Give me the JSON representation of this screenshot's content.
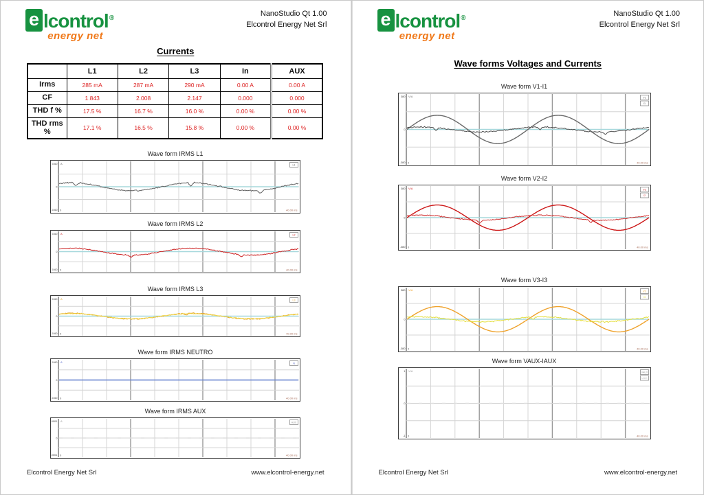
{
  "logo": {
    "e": "e",
    "word": "lcontrol",
    "reg": "®",
    "sub": "energy net",
    "green": "#179240",
    "orange": "#f07818"
  },
  "header": {
    "line1": "NanoStudio Qt 1.00",
    "line2": "Elcontrol Energy Net Srl"
  },
  "footer": {
    "left": "Elcontrol Energy Net Srl",
    "right": "www.elcontrol-energy.net"
  },
  "colors": {
    "baseline_cyan": "#a6d8dc",
    "grid_light": "#d4d4d4",
    "grid_dark": "#9a9a9a",
    "value_red": "#dd2222"
  },
  "pages": [
    {
      "title": "Currents",
      "table": {
        "columns": [
          "",
          "L1",
          "L2",
          "L3",
          "In",
          "AUX"
        ],
        "rows": [
          {
            "label": "Irms",
            "values": [
              "285 mA",
              "287 mA",
              "290 mA",
              "0.00 A",
              "0.00 A"
            ]
          },
          {
            "label": "CF",
            "values": [
              "1.843",
              "2.008",
              "2.147",
              "0.000",
              "0.000"
            ]
          },
          {
            "label": "THD f %",
            "values": [
              "17.5 %",
              "16.7 %",
              "16.0 %",
              "0.00 %",
              "0.00 %"
            ]
          },
          {
            "label": "THD rms %",
            "values": [
              "17.1 %",
              "16.5 %",
              "15.8 %",
              "0.00 %",
              "0.00 %"
            ]
          }
        ]
      },
      "charts": [
        {
          "title": "Wave form IRMS L1",
          "unit": "A",
          "y_labels": [
            "0.60",
            "0",
            "-0.60"
          ],
          "x_start": "0",
          "x_end": "40.00 ms",
          "baseline": "#a6d8dc",
          "legend": [
            {
              "label": "L1",
              "color": "#5f5f5f"
            }
          ],
          "series": [
            {
              "name": "IRMS L1",
              "color": "#5f5f5f",
              "shape": "noisy",
              "amp": 0.16,
              "cycles": 2,
              "phase": 0.9,
              "noise": 0.03,
              "dips": [
                0.07,
                0.55,
                0.84
              ],
              "dip_depth": 0.12
            }
          ]
        },
        {
          "title": "Wave form IRMS L2",
          "unit": "A",
          "y_labels": [
            "0.60",
            "0",
            "-0.60"
          ],
          "x_start": "0",
          "x_end": "40.00 ms",
          "baseline": "#a6d8dc",
          "legend": [
            {
              "label": "L2",
              "color": "#cc2020"
            }
          ],
          "series": [
            {
              "name": "IRMS L2",
              "color": "#cc2020",
              "shape": "noisy",
              "amp": 0.17,
              "cycles": 2,
              "phase": 0.9,
              "noise": 0.03,
              "dips": [
                0.3,
                0.76
              ],
              "dip_depth": 0.12
            }
          ]
        },
        {
          "title": "Wave form IRMS L3",
          "unit": "A",
          "y_labels": [
            "0.60",
            "0",
            "-0.60"
          ],
          "x_start": "0",
          "x_end": "40.00 ms",
          "baseline": "#a6d8dc",
          "legend": [
            {
              "label": "L3",
              "color": "#e5a027"
            }
          ],
          "series": [
            {
              "name": "IRMS L3",
              "color": "#e5a027",
              "shape": "noisy",
              "amp": 0.15,
              "cycles": 2,
              "phase": 0.9,
              "noise": 0.03,
              "dips": [
                0.53
              ],
              "dip_depth": 0.1
            },
            {
              "name": "IRMS L3 trace",
              "color": "#f0d84a",
              "shape": "noisy",
              "amp": 0.13,
              "cycles": 2,
              "phase": 0.9,
              "noise": 0.025,
              "dips": [],
              "dip_depth": 0
            }
          ]
        },
        {
          "title": "Wave form IRMS NEUTRO",
          "unit": "A",
          "y_labels": [
            "0.60",
            "0",
            "-0.60"
          ],
          "x_start": "0",
          "x_end": "40.00 ms",
          "baseline": "#a6d8dc",
          "legend": [
            {
              "label": "N",
              "color": "#5566cc"
            }
          ],
          "series": [
            {
              "name": "IRMS NEUTRO",
              "color": "#5566cc",
              "shape": "flat",
              "amp": 0,
              "cycles": 0,
              "phase": 0,
              "noise": 0,
              "dips": [],
              "dip_depth": 0
            }
          ]
        },
        {
          "title": "Wave form IRMS AUX",
          "unit": "A",
          "y_labels": [
            "0.0001",
            "0",
            "-0.0001"
          ],
          "x_start": "0",
          "x_end": "40.00 ms",
          "baseline": "#dddddd",
          "legend": [
            {
              "label": "AUX",
              "color": "#999999"
            }
          ],
          "series": []
        }
      ]
    },
    {
      "title": "Wave forms Voltages and Currents",
      "charts": [
        {
          "title": "Wave form V1-I1",
          "unit": "V/A",
          "y_labels": [
            "380",
            "0",
            "-380"
          ],
          "x_start": "0",
          "x_end": "40.00 ms",
          "baseline": "#a6d8dc",
          "legend": [
            {
              "label": "V1",
              "color": "#6a6a6a"
            },
            {
              "label": "I1",
              "color": "#4f4f4f"
            }
          ],
          "series": [
            {
              "name": "V1",
              "color": "#6a6a6a",
              "shape": "sine",
              "amp": 0.4,
              "cycles": 2,
              "phase": 0,
              "noise": 0,
              "dips": [],
              "dip_depth": 0
            },
            {
              "name": "I1",
              "color": "#4f4f4f",
              "shape": "noisy",
              "amp": 0.07,
              "cycles": 2,
              "phase": 0.9,
              "noise": 0.02,
              "dips": [
                0.12,
                0.55,
                0.82
              ],
              "dip_depth": 0.08
            }
          ]
        },
        {
          "title": "Wave form V2-I2",
          "unit": "V/A",
          "y_labels": [
            "380",
            "0",
            "-380"
          ],
          "x_start": "0",
          "x_end": "40.00 ms",
          "baseline": "#a6d8dc",
          "legend": [
            {
              "label": "V2",
              "color": "#cc1616"
            },
            {
              "label": "I2",
              "color": "#d03030"
            }
          ],
          "series": [
            {
              "name": "V2",
              "color": "#cc1616",
              "shape": "sine",
              "amp": 0.4,
              "cycles": 2,
              "phase": 0,
              "noise": 0,
              "dips": [],
              "dip_depth": 0
            },
            {
              "name": "I2",
              "color": "#d03030",
              "shape": "noisy",
              "amp": 0.08,
              "cycles": 2,
              "phase": 0.9,
              "noise": 0.02,
              "dips": [
                0.3,
                0.76
              ],
              "dip_depth": 0.09
            }
          ]
        },
        {
          "title": "Wave form V3-I3",
          "unit": "V/A",
          "y_labels": [
            "380",
            "0",
            "-380"
          ],
          "x_start": "0",
          "x_end": "40.00 ms",
          "baseline": "#a6d8dc",
          "legend": [
            {
              "label": "V3",
              "color": "#efa22b"
            },
            {
              "label": "I3",
              "color": "#e3de3e"
            }
          ],
          "series": [
            {
              "name": "V3",
              "color": "#efa22b",
              "shape": "sine",
              "amp": 0.4,
              "cycles": 2,
              "phase": 0,
              "noise": 0,
              "dips": [],
              "dip_depth": 0
            },
            {
              "name": "I3",
              "color": "#e3de3e",
              "shape": "noisy",
              "amp": 0.08,
              "cycles": 2,
              "phase": 0.9,
              "noise": 0.025,
              "dips": [
                0.52
              ],
              "dip_depth": 0.08
            }
          ]
        },
        {
          "title": "Wave form VAUX-IAUX",
          "unit": "V/A",
          "y_labels": [
            "1",
            "0",
            "-1"
          ],
          "x_start": "0",
          "x_end": "40.00 ms",
          "baseline": "#dddddd",
          "legend": [
            {
              "label": "VAUX",
              "color": "#999999"
            },
            {
              "label": "IAUX",
              "color": "#bbbbbb"
            }
          ],
          "series": []
        }
      ]
    }
  ]
}
